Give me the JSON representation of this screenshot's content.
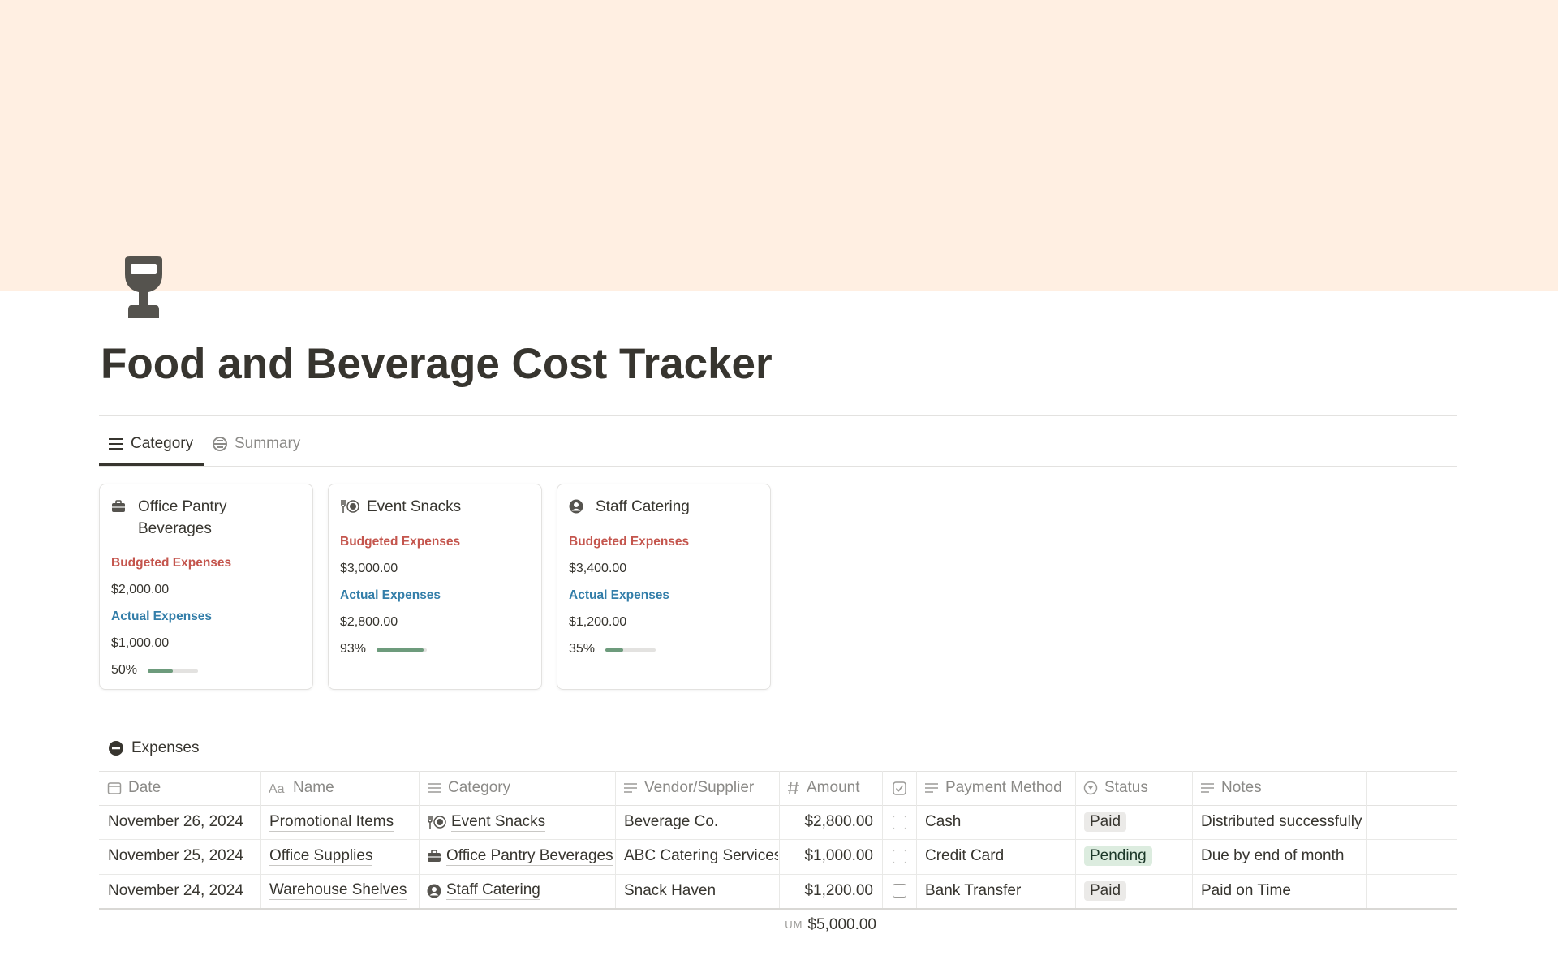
{
  "page": {
    "title": "Food and Beverage Cost Tracker",
    "tabs": [
      "Category",
      "Summary"
    ],
    "cards": [
      {
        "name": "Office Pantry Beverages",
        "icon": "briefcase",
        "budget_label": "Budgeted Expenses",
        "budget": "$2,000.00",
        "actual_label": "Actual Expenses",
        "actual": "$1,000.00",
        "progress": {
          "value": 50,
          "label": "50%"
        }
      },
      {
        "name": "Event Snacks",
        "icon": "dining",
        "budget_label": "Budgeted Expenses",
        "budget": "$3,000.00",
        "actual_label": "Actual Expenses",
        "actual": "$2,800.00",
        "progress": {
          "value": 93,
          "label": "93%"
        }
      },
      {
        "name": "Staff Catering",
        "icon": "person",
        "budget_label": "Budgeted Expenses",
        "budget": "$3,400.00",
        "actual_label": "Actual Expenses",
        "actual": "$1,200.00",
        "progress": {
          "value": 35,
          "label": "35%"
        }
      }
    ],
    "expenses": {
      "title": "Expenses",
      "columns": [
        "Date",
        "Name",
        "Category",
        "Vendor/Supplier",
        "Amount",
        "Payment Method",
        "Status",
        "Notes"
      ],
      "rows": [
        {
          "date": "November 26, 2024",
          "name": "Promotional Items",
          "category": "Event Snacks",
          "category_icon": "dining",
          "vendor": "Beverage Co.",
          "amount": "$2,800.00",
          "done": false,
          "payment": "Cash",
          "status": "Paid",
          "status_color": "#ebeae8",
          "notes": "Distributed successfully"
        },
        {
          "date": "November 25, 2024",
          "name": "Office Supplies",
          "category": "Office Pantry Beverages",
          "category_icon": "briefcase",
          "vendor": "ABC Catering Services",
          "amount": "$1,000.00",
          "done": false,
          "payment": "Credit Card",
          "status": "Pending",
          "status_color": "#dcecdf",
          "notes": "Due by end of month"
        },
        {
          "date": "November 24, 2024",
          "name": "Warehouse Shelves",
          "category": "Staff Catering",
          "category_icon": "person",
          "vendor": "Snack Haven",
          "amount": "$1,200.00",
          "done": false,
          "payment": "Bank Transfer",
          "status": "Paid",
          "status_color": "#ebeae8",
          "notes": "Paid on Time"
        }
      ],
      "sum_label": "UM",
      "sum": "$5,000.00"
    }
  }
}
